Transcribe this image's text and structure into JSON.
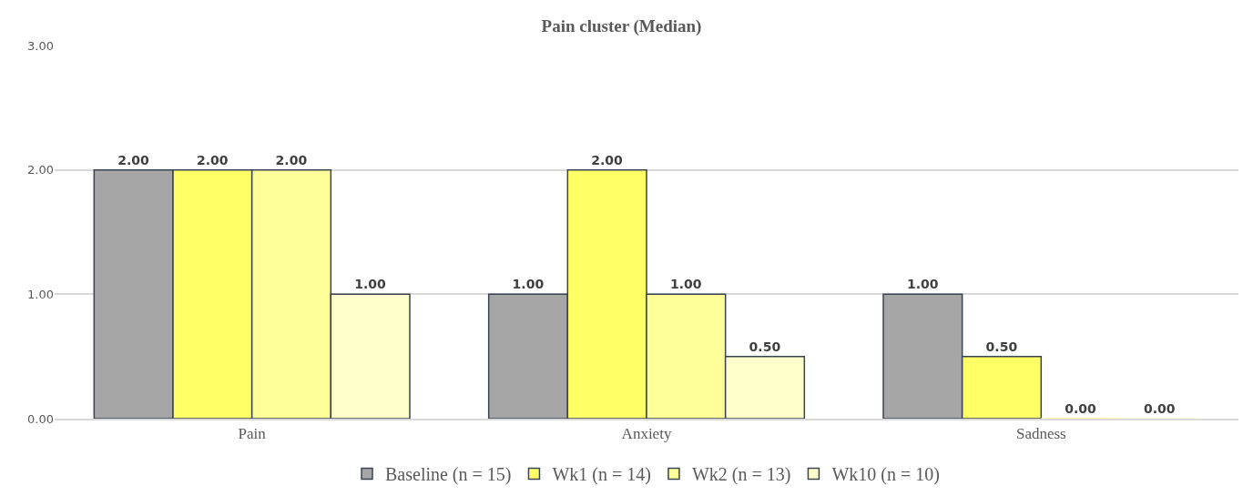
{
  "chart_data": {
    "type": "bar",
    "title": "Pain cluster (Median)",
    "categories": [
      "Pain",
      "Anxiety",
      "Sadness"
    ],
    "series": [
      {
        "name": "Baseline (n = 15)",
        "color": "#a6a6a6",
        "values": [
          2,
          1,
          1
        ],
        "value_labels": [
          "2.00",
          "1.00",
          "1.00"
        ]
      },
      {
        "name": "Wk1 (n = 14)",
        "color": "#ffff66",
        "values": [
          2,
          2,
          0.5
        ],
        "value_labels": [
          "2.00",
          "2.00",
          "0.50"
        ]
      },
      {
        "name": "Wk2 (n = 13)",
        "color": "#ffff99",
        "values": [
          2,
          1,
          0
        ],
        "value_labels": [
          "2.00",
          "1.00",
          "0.00"
        ]
      },
      {
        "name": "Wk10 (n = 10)",
        "color": "#ffffcc",
        "values": [
          1,
          0.5,
          0
        ],
        "value_labels": [
          "1.00",
          "0.50",
          "0.00"
        ]
      }
    ],
    "ylim": [
      0,
      3
    ],
    "yticks": [
      {
        "value": 0,
        "label": "0.00"
      },
      {
        "value": 1,
        "label": "1.00"
      },
      {
        "value": 2,
        "label": "2.00"
      },
      {
        "value": 3,
        "label": "3.00"
      }
    ],
    "grid": "y",
    "legend": "bottom"
  }
}
